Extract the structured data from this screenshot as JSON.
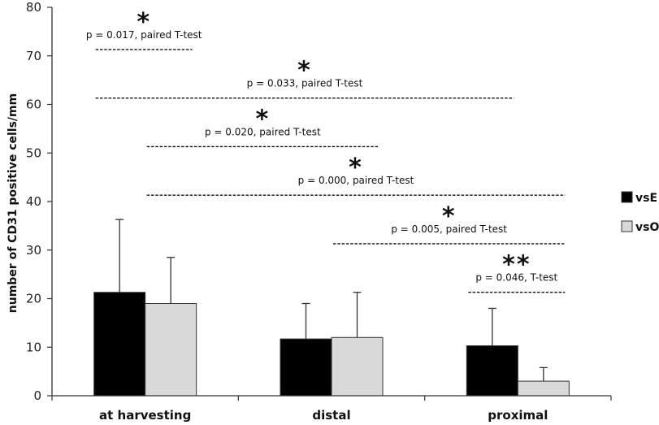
{
  "chart_data": {
    "type": "bar",
    "title": "",
    "xlabel": "",
    "ylabel": "number of CD31 positive cells/mm",
    "ylim": [
      0,
      80
    ],
    "yticks": [
      0,
      10,
      20,
      30,
      40,
      50,
      60,
      70,
      80
    ],
    "grid": false,
    "legend_position": "right",
    "categories": [
      "at harvesting",
      "distal",
      "proximal"
    ],
    "series": [
      {
        "name": "vsE",
        "color": "#000000",
        "values": [
          21.3,
          11.7,
          10.3
        ],
        "error_plus": [
          15.0,
          7.3,
          7.7
        ]
      },
      {
        "name": "vsO",
        "color": "#d9d9d9",
        "values": [
          19.0,
          12.0,
          3.0
        ],
        "error_plus": [
          9.5,
          9.3,
          2.8
        ]
      }
    ],
    "annotations": [
      {
        "text": "p = 0.017, paired T-test",
        "stars": "*",
        "y": 71.3,
        "from": [
          0,
          0
        ],
        "to": [
          0,
          1
        ]
      },
      {
        "text": "p = 0.033, paired T-test",
        "stars": "*",
        "y": 61.3,
        "from": [
          0,
          0
        ],
        "to": [
          2,
          0
        ]
      },
      {
        "text": "p = 0.020, paired T-test",
        "stars": "*",
        "y": 51.3,
        "from": [
          0,
          1
        ],
        "to": [
          1,
          1
        ]
      },
      {
        "text": "p = 0.000, paired T-test",
        "stars": "*",
        "y": 41.3,
        "from": [
          0,
          1
        ],
        "to": [
          2,
          1
        ]
      },
      {
        "text": "p = 0.005, paired T-test",
        "stars": "*",
        "y": 31.3,
        "from": [
          1,
          1
        ],
        "to": [
          2,
          1
        ]
      },
      {
        "text": "p = 0.046, T-test",
        "stars": "**",
        "y": 21.3,
        "from": [
          2,
          0
        ],
        "to": [
          2,
          1
        ]
      }
    ]
  }
}
